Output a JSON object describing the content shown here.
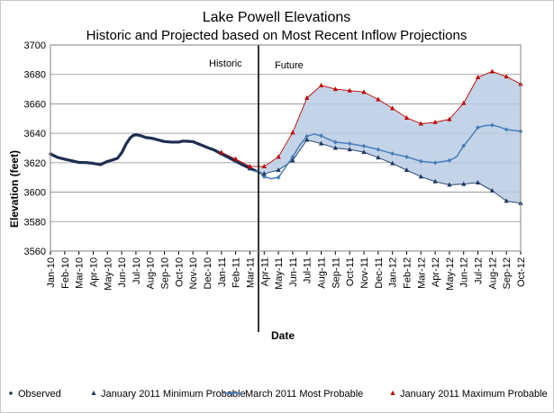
{
  "chart_data": {
    "type": "line",
    "title": "Lake Powell Elevations",
    "subtitle": "Historic and Projected based on Most Recent Inflow Projections",
    "xlabel": "Date",
    "ylabel": "Elevation (feet)",
    "ylim": [
      3560,
      3700
    ],
    "yticks": [
      3560,
      3580,
      3600,
      3620,
      3640,
      3660,
      3680,
      3700
    ],
    "grid": true,
    "legend_position": "bottom",
    "categories": [
      "Jan-10",
      "Feb-10",
      "Mar-10",
      "Apr-10",
      "May-10",
      "Jun-10",
      "Jul-10",
      "Aug-10",
      "Sep-10",
      "Oct-10",
      "Nov-10",
      "Dec-10",
      "Jan-11",
      "Feb-11",
      "Mar-11",
      "Apr-11",
      "May-11",
      "Jun-11",
      "Jul-11",
      "Aug-11",
      "Sep-11",
      "Oct-11",
      "Nov-11",
      "Dec-11",
      "Jan-12",
      "Feb-12",
      "Mar-12",
      "Apr-12",
      "May-12",
      "Jun-12",
      "Jul-12",
      "Aug-12",
      "Sep-12",
      "Oct-12"
    ],
    "annotations": [
      {
        "text": "Historic"
      },
      {
        "text": "Future"
      }
    ],
    "divider_x": 14.6,
    "series": [
      {
        "name": "Observed",
        "color": "#1f2d50",
        "x": [
          0,
          0.5,
          1,
          1.5,
          2,
          2.5,
          3,
          3.5,
          4,
          4.3,
          4.7,
          5,
          5.3,
          5.6,
          5.8,
          6,
          6.2,
          6.4,
          6.7,
          7,
          7.3,
          7.6,
          8,
          8.5,
          9,
          9.3,
          9.6,
          10,
          10.5,
          11,
          11.5,
          12,
          12.5,
          13,
          13.5,
          14,
          14.4
        ],
        "values": [
          3626,
          3623.6,
          3622.4,
          3621.3,
          3620.2,
          3620.1,
          3619.6,
          3618.7,
          3620.9,
          3621.7,
          3623,
          3626.7,
          3632.6,
          3636.9,
          3638.5,
          3639,
          3638.7,
          3638.2,
          3637.1,
          3636.8,
          3636.2,
          3635.4,
          3634.4,
          3634,
          3634,
          3634.7,
          3634.6,
          3634.3,
          3632.4,
          3630.4,
          3628.6,
          3626,
          3623.5,
          3621,
          3618.5,
          3616.2,
          3614.6
        ]
      },
      {
        "name": "January 2011 Minimum Probable",
        "color": "#1f3864",
        "x": [
          12,
          13,
          14,
          15,
          16,
          17,
          18,
          19,
          20,
          21,
          22,
          23,
          24,
          25,
          26,
          27,
          28,
          29,
          30,
          31,
          32,
          33
        ],
        "values": [
          3626.5,
          3621.5,
          3616,
          3612.5,
          3615,
          3621.5,
          3635.5,
          3633,
          3630,
          3629,
          3627.2,
          3623.5,
          3619.5,
          3615,
          3610.5,
          3607.2,
          3605,
          3605.5,
          3606.5,
          3601,
          3594,
          3592.5
        ]
      },
      {
        "name": "March 2011 Most Probable",
        "color": "#4a7ebb",
        "x": [
          14.3,
          14.6,
          15,
          15.5,
          16,
          16.5,
          17,
          17.5,
          18,
          18.5,
          19,
          19.5,
          20,
          21,
          22,
          23,
          24,
          25,
          26,
          27,
          28,
          28.5,
          29,
          29.5,
          30,
          30.5,
          31,
          31.5,
          32,
          33
        ],
        "values": [
          3614.5,
          3613.5,
          3610.5,
          3609.2,
          3610,
          3617,
          3624,
          3632,
          3638,
          3639.5,
          3638.3,
          3636,
          3634,
          3633,
          3631.3,
          3629,
          3626.2,
          3624,
          3621,
          3620,
          3621.5,
          3624,
          3631.5,
          3637.5,
          3644,
          3645.2,
          3645.5,
          3644.4,
          3642.5,
          3641.3
        ]
      },
      {
        "name": "January 2011 Maximum Probable",
        "color": "#c00000",
        "x": [
          12,
          13,
          14,
          15,
          16,
          17,
          18,
          19,
          20,
          21,
          22,
          23,
          24,
          25,
          26,
          27,
          28,
          29,
          30,
          31,
          32,
          33
        ],
        "values": [
          3627,
          3622.5,
          3617.5,
          3617.5,
          3624,
          3640.5,
          3664,
          3672.5,
          3670,
          3669,
          3668,
          3663,
          3657,
          3650.5,
          3646.5,
          3647.5,
          3649.5,
          3660.5,
          3678,
          3682,
          3678.5,
          3673.5
        ]
      }
    ]
  }
}
